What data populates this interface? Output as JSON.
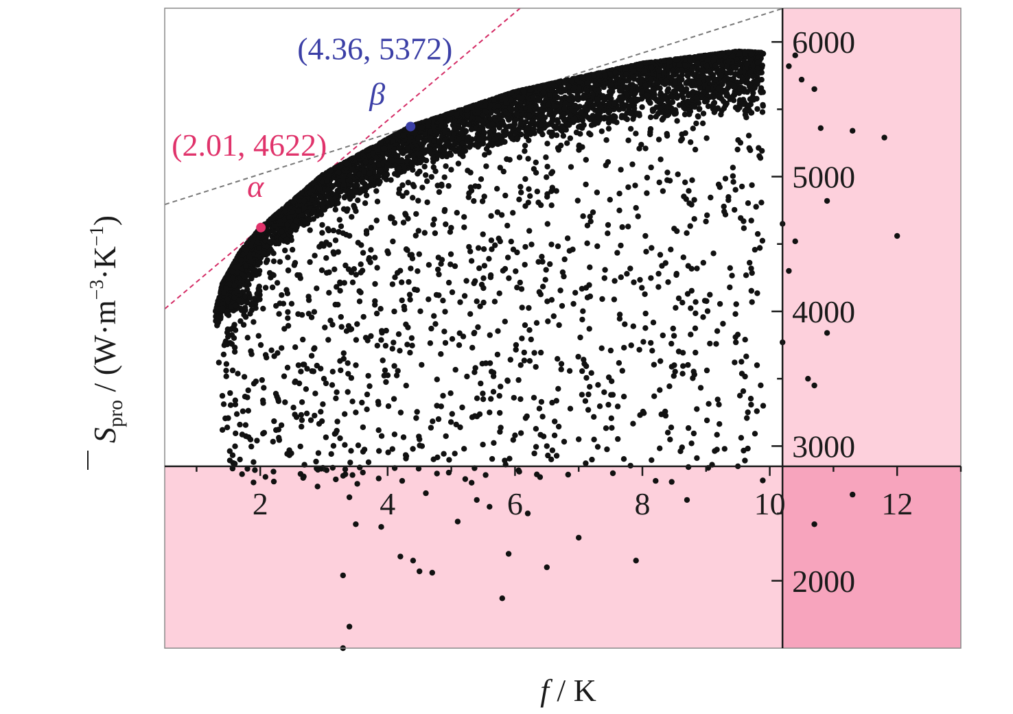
{
  "chart_data": {
    "type": "scatter",
    "title": "",
    "xlabel": "f / K",
    "ylabel": "S̄pro / (W·m⁻³·K⁻¹)",
    "xlabel_parts": {
      "italic": "f",
      "rest": " / K"
    },
    "ylabel_parts": {
      "symbol": "S",
      "sub": "pro",
      "unit_open": " / (W·m",
      "sup1": "−3",
      "mid": "·K",
      "sup2": "−1",
      "unit_close": ")"
    },
    "xlim": [
      0.5,
      13.0
    ],
    "ylim": [
      1500,
      6250
    ],
    "x_axis_cross_y": 2850,
    "y_axis_cross_x": 10.2,
    "x_ticks": [
      2,
      4,
      6,
      8,
      10,
      12
    ],
    "x_tick_labels": [
      "2",
      "4",
      "6",
      "8",
      "10",
      "12"
    ],
    "y_ticks": [
      2000,
      3000,
      4000,
      5000,
      6000
    ],
    "y_tick_labels": [
      "2000",
      "3000",
      "4000",
      "5000",
      "6000"
    ],
    "grid": false,
    "shaded_regions": [
      {
        "x": [
          0.5,
          10.2
        ],
        "y": [
          1500,
          2850
        ],
        "color": "#fdd0dc"
      },
      {
        "x": [
          10.2,
          13.0
        ],
        "y": [
          2850,
          6250
        ],
        "color": "#fdd0dc"
      },
      {
        "x": [
          10.2,
          13.0
        ],
        "y": [
          1500,
          2850
        ],
        "color": "#f7a4bd"
      }
    ],
    "frontier_points": [
      {
        "label": "α",
        "x": 2.01,
        "y": 4622,
        "text": "(2.01, 4622)",
        "color": "#e0336b"
      },
      {
        "label": "β",
        "x": 4.36,
        "y": 5372,
        "text": "(4.36, 5372)",
        "color": "#3b3fa6"
      }
    ],
    "tangent_lines": [
      {
        "through": [
          2.01,
          4622
        ],
        "slope": 400,
        "color": "#d42a64"
      },
      {
        "through": [
          4.36,
          5372
        ],
        "slope": 150,
        "color": "#777777"
      }
    ],
    "series": [
      {
        "frontier": {
          "x": [
            1.3,
            1.4,
            1.7,
            2.01,
            3.0,
            4.36,
            6.0,
            8.0,
            9.0,
            9.5,
            9.9
          ],
          "y": [
            4000,
            4200,
            4450,
            4622,
            5020,
            5372,
            5630,
            5840,
            5900,
            5930,
            5920
          ]
        },
        "dense_band_width": 380,
        "scatter": [
          [
            1.35,
            3620
          ],
          [
            1.6,
            3700
          ],
          [
            2.6,
            3600
          ],
          [
            3.0,
            3500
          ],
          [
            3.2,
            3400
          ],
          [
            3.5,
            3250
          ],
          [
            3.7,
            2880
          ],
          [
            4.1,
            3350
          ],
          [
            4.5,
            3050
          ],
          [
            4.8,
            3200
          ],
          [
            5.2,
            2980
          ],
          [
            5.6,
            3250
          ],
          [
            6.0,
            3080
          ],
          [
            6.5,
            3000
          ],
          [
            7.0,
            3050
          ],
          [
            7.4,
            3400
          ],
          [
            8.4,
            3100
          ],
          [
            8.5,
            3600
          ],
          [
            9.5,
            2850
          ],
          [
            9.8,
            3600
          ],
          [
            3.9,
            2400
          ],
          [
            4.2,
            2180
          ],
          [
            4.7,
            2060
          ],
          [
            5.1,
            2440
          ],
          [
            5.4,
            2600
          ],
          [
            5.6,
            2550
          ],
          [
            5.9,
            2200
          ],
          [
            6.2,
            2500
          ],
          [
            6.5,
            2100
          ],
          [
            7.0,
            2320
          ],
          [
            7.9,
            2150
          ],
          [
            8.7,
            2600
          ],
          [
            2.9,
            2700
          ],
          [
            3.3,
            2040
          ],
          [
            3.4,
            2620
          ],
          [
            3.5,
            2420
          ],
          [
            4.4,
            2150
          ],
          [
            4.5,
            2070
          ],
          [
            4.6,
            2650
          ],
          [
            5.8,
            1870
          ],
          [
            3.4,
            1660
          ],
          [
            3.3,
            1500
          ],
          [
            10.3,
            5820
          ],
          [
            10.5,
            5720
          ],
          [
            10.7,
            5650
          ],
          [
            10.8,
            5360
          ],
          [
            11.3,
            5340
          ],
          [
            11.8,
            5290
          ],
          [
            10.9,
            4820
          ],
          [
            10.2,
            4650
          ],
          [
            10.4,
            4520
          ],
          [
            12.0,
            4560
          ],
          [
            10.3,
            4300
          ],
          [
            10.2,
            3770
          ],
          [
            10.9,
            3840
          ],
          [
            10.6,
            3500
          ],
          [
            10.7,
            3450
          ],
          [
            11.3,
            2640
          ],
          [
            10.7,
            2420
          ],
          [
            10.4,
            5900
          ]
        ]
      }
    ]
  }
}
